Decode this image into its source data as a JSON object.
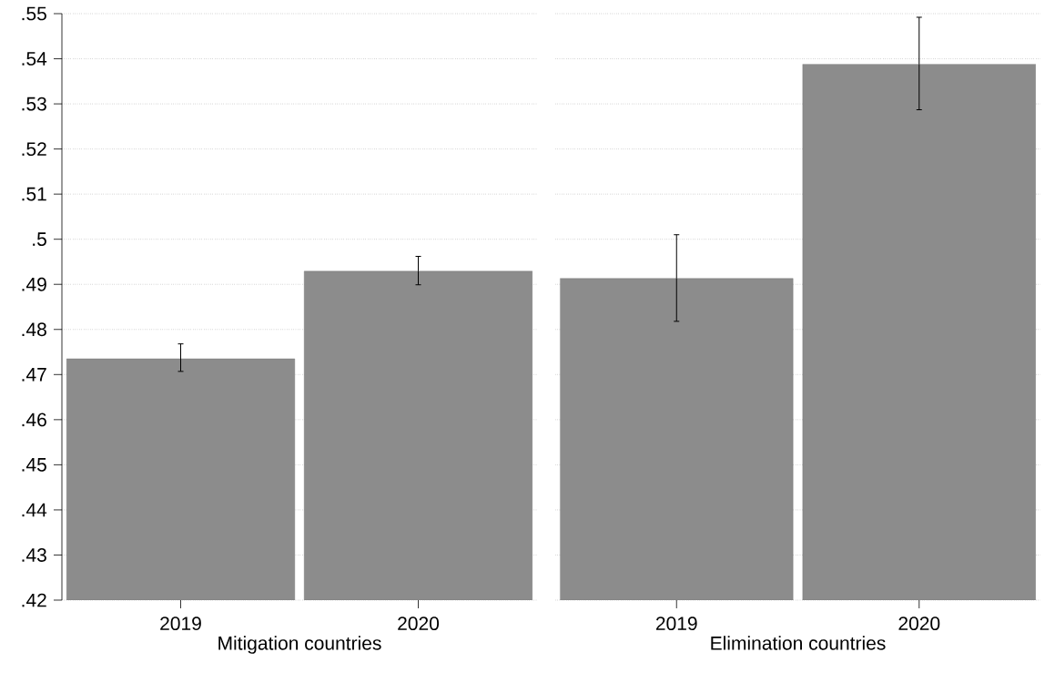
{
  "chart_data": [
    {
      "type": "bar",
      "categories": [
        "2019",
        "2020"
      ],
      "xlabel": "Mitigation countries",
      "values": [
        0.4735,
        0.4929
      ],
      "errors": [
        [
          0.4707,
          0.4768
        ],
        [
          0.4899,
          0.4962
        ]
      ],
      "color": "#8c8c8c",
      "ylim": [
        0.42,
        0.55
      ],
      "yticks": [
        {
          "value": 0.42,
          "label": ".42"
        },
        {
          "value": 0.43,
          "label": ".43"
        },
        {
          "value": 0.44,
          "label": ".44"
        },
        {
          "value": 0.45,
          "label": ".45"
        },
        {
          "value": 0.46,
          "label": ".46"
        },
        {
          "value": 0.47,
          "label": ".47"
        },
        {
          "value": 0.48,
          "label": ".48"
        },
        {
          "value": 0.49,
          "label": ".49"
        },
        {
          "value": 0.5,
          "label": ".5"
        },
        {
          "value": 0.51,
          "label": ".51"
        },
        {
          "value": 0.52,
          "label": ".52"
        },
        {
          "value": 0.53,
          "label": ".53"
        },
        {
          "value": 0.54,
          "label": ".54"
        },
        {
          "value": 0.55,
          "label": ".55"
        }
      ],
      "grid": "y"
    },
    {
      "type": "bar",
      "categories": [
        "2019",
        "2020"
      ],
      "xlabel": "Elimination countries",
      "values": [
        0.4913,
        0.5388
      ],
      "errors": [
        [
          0.4818,
          0.501
        ],
        [
          0.5287,
          0.5492
        ]
      ],
      "color": "#8c8c8c",
      "ylim": [
        0.42,
        0.55
      ],
      "yticks": [
        0.42,
        0.43,
        0.44,
        0.45,
        0.46,
        0.47,
        0.48,
        0.49,
        0.5,
        0.51,
        0.52,
        0.53,
        0.54,
        0.55
      ],
      "grid": "y",
      "tick_labels": "x"
    }
  ]
}
